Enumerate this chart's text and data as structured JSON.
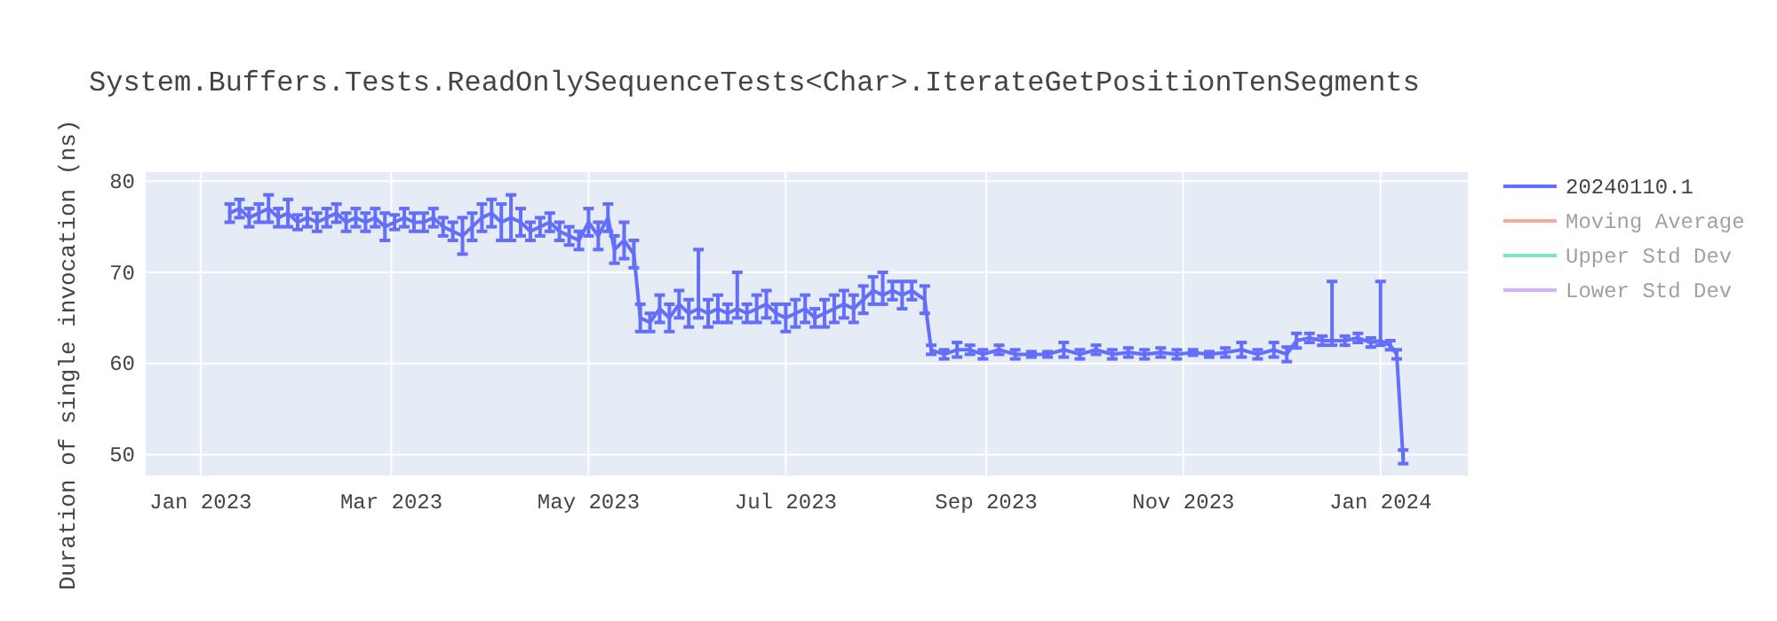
{
  "chart_data": {
    "type": "line",
    "title": "System.Buffers.Tests.ReadOnlySequenceTests<Char>.IterateGetPositionTenSegments",
    "ylabel": "Duration of single invocation (ns)",
    "xlim": [
      "2022-12-15",
      "2024-01-28"
    ],
    "xticks": [
      {
        "value": "2023-01-01",
        "label": "Jan 2023"
      },
      {
        "value": "2023-03-01",
        "label": "Mar 2023"
      },
      {
        "value": "2023-05-01",
        "label": "May 2023"
      },
      {
        "value": "2023-07-01",
        "label": "Jul 2023"
      },
      {
        "value": "2023-09-01",
        "label": "Sep 2023"
      },
      {
        "value": "2023-11-01",
        "label": "Nov 2023"
      },
      {
        "value": "2024-01-01",
        "label": "Jan 2024"
      }
    ],
    "ylim": [
      47.7,
      81
    ],
    "yticks": [
      50,
      60,
      70,
      80
    ],
    "grid": true,
    "legend": "top right",
    "x": [
      "2023-01-10",
      "2023-01-13",
      "2023-01-16",
      "2023-01-19",
      "2023-01-22",
      "2023-01-25",
      "2023-01-28",
      "2023-01-31",
      "2023-02-03",
      "2023-02-06",
      "2023-02-09",
      "2023-02-12",
      "2023-02-15",
      "2023-02-18",
      "2023-02-21",
      "2023-02-24",
      "2023-02-27",
      "2023-03-02",
      "2023-03-05",
      "2023-03-08",
      "2023-03-11",
      "2023-03-14",
      "2023-03-17",
      "2023-03-20",
      "2023-03-23",
      "2023-03-26",
      "2023-03-29",
      "2023-04-01",
      "2023-04-04",
      "2023-04-07",
      "2023-04-10",
      "2023-04-13",
      "2023-04-16",
      "2023-04-19",
      "2023-04-22",
      "2023-04-25",
      "2023-04-28",
      "2023-05-01",
      "2023-05-04",
      "2023-05-07",
      "2023-05-09",
      "2023-05-12",
      "2023-05-15",
      "2023-05-17",
      "2023-05-20",
      "2023-05-23",
      "2023-05-26",
      "2023-05-29",
      "2023-06-01",
      "2023-06-04",
      "2023-06-07",
      "2023-06-10",
      "2023-06-13",
      "2023-06-16",
      "2023-06-19",
      "2023-06-22",
      "2023-06-25",
      "2023-06-28",
      "2023-07-01",
      "2023-07-04",
      "2023-07-07",
      "2023-07-10",
      "2023-07-13",
      "2023-07-16",
      "2023-07-19",
      "2023-07-22",
      "2023-07-25",
      "2023-07-28",
      "2023-07-31",
      "2023-08-03",
      "2023-08-06",
      "2023-08-09",
      "2023-08-13",
      "2023-08-15",
      "2023-08-19",
      "2023-08-23",
      "2023-08-27",
      "2023-08-31",
      "2023-09-05",
      "2023-09-10",
      "2023-09-15",
      "2023-09-20",
      "2023-09-25",
      "2023-09-30",
      "2023-10-05",
      "2023-10-10",
      "2023-10-15",
      "2023-10-20",
      "2023-10-25",
      "2023-10-30",
      "2023-11-04",
      "2023-11-09",
      "2023-11-14",
      "2023-11-19",
      "2023-11-24",
      "2023-11-29",
      "2023-12-03",
      "2023-12-06",
      "2023-12-10",
      "2023-12-14",
      "2023-12-17",
      "2023-12-21",
      "2023-12-25",
      "2023-12-29",
      "2024-01-01",
      "2024-01-04",
      "2024-01-06",
      "2024-01-08"
    ],
    "series": [
      {
        "name": "20240110.1",
        "color": "#636efa",
        "values": [
          76.5,
          77,
          76,
          76.5,
          77,
          76,
          76.5,
          75.5,
          76,
          75.5,
          76,
          76.5,
          75.5,
          76,
          75.5,
          76,
          75,
          75.5,
          76,
          75.5,
          75.5,
          76,
          75,
          74.5,
          74,
          75,
          76,
          76.5,
          75.5,
          76,
          75.5,
          74.5,
          75,
          75.5,
          74.5,
          74,
          73.5,
          75.5,
          74,
          76,
          72.5,
          73.5,
          72,
          65,
          64.5,
          66,
          65,
          66.5,
          65.5,
          66,
          65.5,
          66,
          65.5,
          66,
          65.5,
          66,
          66.5,
          65.5,
          65,
          65.5,
          66,
          65,
          65.5,
          66,
          66.5,
          66,
          67,
          68,
          67.5,
          68,
          67.5,
          68,
          67,
          61.5,
          61,
          61.5,
          61.5,
          61,
          61.5,
          61,
          61,
          61,
          61.5,
          61,
          61.5,
          61,
          61.2,
          61,
          61.2,
          61,
          61.2,
          61,
          61.2,
          61.5,
          61,
          61.5,
          61,
          62.5,
          62.8,
          62.5,
          62.5,
          62.5,
          62.8,
          62.3,
          62.5,
          62,
          61,
          49.5
        ],
        "errors": [
          1,
          1,
          1,
          1,
          1.5,
          1,
          1.5,
          0.8,
          1,
          1,
          1,
          1,
          1,
          1,
          1,
          1,
          1.5,
          0.8,
          1,
          1,
          1,
          1,
          1,
          1,
          2,
          1.5,
          1.5,
          1.5,
          2,
          2.5,
          1.5,
          1,
          1,
          1,
          1,
          1,
          1,
          1.5,
          1.5,
          1.5,
          1.5,
          2,
          1.5,
          1.5,
          1,
          1.5,
          1.5,
          1.5,
          1.5,
          [
            65,
            72.5
          ],
          1.5,
          1.5,
          1,
          [
            65,
            70
          ],
          1,
          1.5,
          1.5,
          1,
          1.5,
          1.5,
          1.5,
          1,
          1.5,
          1.5,
          1.5,
          1.5,
          1.5,
          1.5,
          [
            66.5,
            70
          ],
          1,
          1.5,
          1,
          1.5,
          0.5,
          0.5,
          0.8,
          0.5,
          0.5,
          0.5,
          0.5,
          0.3,
          0.3,
          0.8,
          0.5,
          0.5,
          0.5,
          0.5,
          0.5,
          0.5,
          0.5,
          0.3,
          0.3,
          0.5,
          0.8,
          0.5,
          0.8,
          0.8,
          0.8,
          0.5,
          0.5,
          [
            62,
            69
          ],
          0.5,
          0.5,
          0.5,
          [
            62,
            69
          ],
          0.5,
          0.5,
          [
            49,
            50.5
          ]
        ]
      },
      {
        "name": "Moving Average",
        "color": "#ef553b",
        "values": [
          null,
          null,
          null,
          null,
          null,
          null,
          null,
          null,
          null,
          null,
          null,
          null,
          null,
          null,
          null,
          null,
          null,
          null,
          null,
          null,
          null,
          null,
          null,
          null,
          null,
          null,
          null,
          null,
          null,
          null,
          null,
          null,
          null,
          null,
          null,
          null,
          null,
          null,
          null,
          null,
          null,
          null,
          null,
          null,
          null,
          null,
          null,
          null,
          null,
          null,
          null,
          null,
          null,
          null,
          null,
          null,
          null,
          null,
          null,
          null,
          null,
          null,
          null,
          null,
          null,
          null,
          null,
          null,
          null,
          null,
          null,
          null,
          null,
          null,
          null,
          null,
          null,
          null,
          null,
          null,
          null,
          null,
          null,
          null,
          null,
          null,
          null,
          null,
          null,
          null,
          null,
          null,
          null,
          null,
          null,
          null,
          null,
          null,
          null,
          null,
          null,
          null,
          null,
          null,
          null,
          null,
          null,
          null
        ]
      },
      {
        "name": "Upper Std Dev",
        "color": "#00cc96",
        "values": [
          null,
          null,
          null,
          null,
          null,
          null,
          null,
          null,
          null,
          null,
          null,
          null,
          null,
          null,
          null,
          null,
          null,
          null,
          null,
          null,
          null,
          null,
          null,
          null,
          null,
          null,
          null,
          null,
          null,
          null,
          null,
          null,
          null,
          null,
          null,
          null,
          null,
          null,
          null,
          null,
          null,
          null,
          null,
          null,
          null,
          null,
          null,
          null,
          null,
          null,
          null,
          null,
          null,
          null,
          null,
          null,
          null,
          null,
          null,
          null,
          null,
          null,
          null,
          null,
          null,
          null,
          null,
          null,
          null,
          null,
          null,
          null,
          null,
          null,
          null,
          null,
          null,
          null,
          null,
          null,
          null,
          null,
          null,
          null,
          null,
          null,
          null,
          null,
          null,
          null,
          null,
          null,
          null,
          null,
          null,
          null,
          null,
          null,
          null,
          null,
          null,
          null,
          null,
          null,
          null,
          null,
          null,
          null
        ]
      },
      {
        "name": "Lower Std Dev",
        "color": "#ab63fa",
        "values": [
          null,
          null,
          null,
          null,
          null,
          null,
          null,
          null,
          null,
          null,
          null,
          null,
          null,
          null,
          null,
          null,
          null,
          null,
          null,
          null,
          null,
          null,
          null,
          null,
          null,
          null,
          null,
          null,
          null,
          null,
          null,
          null,
          null,
          null,
          null,
          null,
          null,
          null,
          null,
          null,
          null,
          null,
          null,
          null,
          null,
          null,
          null,
          null,
          null,
          null,
          null,
          null,
          null,
          null,
          null,
          null,
          null,
          null,
          null,
          null,
          null,
          null,
          null,
          null,
          null,
          null,
          null,
          null,
          null,
          null,
          null,
          null,
          null,
          null,
          null,
          null,
          null,
          null,
          null,
          null,
          null,
          null,
          null,
          null,
          null,
          null,
          null,
          null,
          null,
          null,
          null,
          null,
          null,
          null,
          null,
          null,
          null,
          null,
          null,
          null,
          null,
          null,
          null,
          null,
          null,
          null,
          null,
          null
        ]
      }
    ]
  }
}
